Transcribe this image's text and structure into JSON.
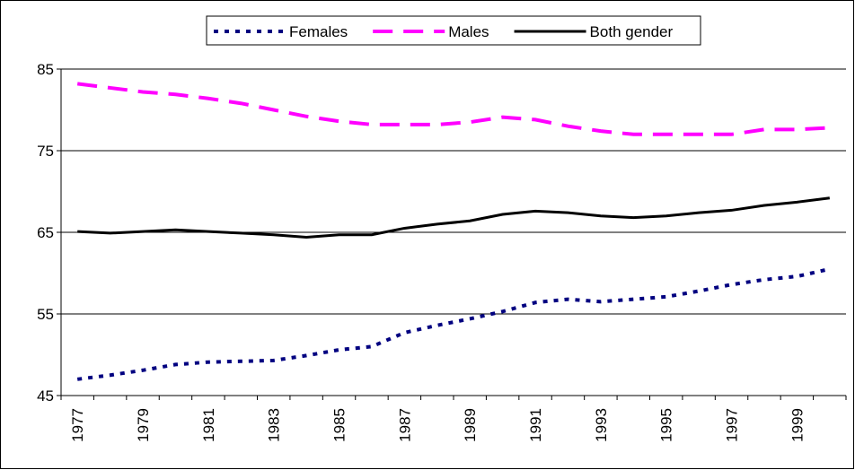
{
  "chart_data": {
    "type": "line",
    "categories": [
      "1977",
      null,
      "1979",
      null,
      "1981",
      null,
      "1983",
      null,
      "1985",
      null,
      "1987",
      null,
      "1989",
      null,
      "1991",
      null,
      "1993",
      null,
      "1995",
      null,
      "1997",
      null,
      "1999",
      null
    ],
    "series": [
      {
        "name": "Females",
        "color": "#000080",
        "style": "dotted",
        "values": [
          47.0,
          47.5,
          48.1,
          48.8,
          49.1,
          49.2,
          49.3,
          49.9,
          50.6,
          51.0,
          52.7,
          53.6,
          54.4,
          55.3,
          56.4,
          56.8,
          56.5,
          56.8,
          57.1,
          57.8,
          58.6,
          59.2,
          59.6,
          60.5
        ]
      },
      {
        "name": "Males",
        "color": "#ff00ff",
        "style": "dashed",
        "values": [
          83.2,
          82.7,
          82.2,
          81.9,
          81.4,
          80.8,
          80.0,
          79.2,
          78.6,
          78.2,
          78.2,
          78.2,
          78.5,
          79.1,
          78.8,
          78.0,
          77.4,
          77.0,
          77.0,
          77.0,
          77.0,
          77.6,
          77.6,
          77.8
        ]
      },
      {
        "name": "Both gender",
        "color": "#000000",
        "style": "solid",
        "values": [
          65.1,
          64.9,
          65.1,
          65.3,
          65.1,
          64.9,
          64.7,
          64.4,
          64.7,
          64.7,
          65.5,
          66.0,
          66.4,
          67.2,
          67.6,
          67.4,
          67.0,
          66.8,
          67.0,
          67.4,
          67.7,
          68.3,
          68.7,
          69.2
        ]
      }
    ],
    "ylim": [
      45,
      85
    ],
    "yticks": [
      45,
      55,
      65,
      75,
      85
    ],
    "grid": true,
    "legend": "top"
  }
}
